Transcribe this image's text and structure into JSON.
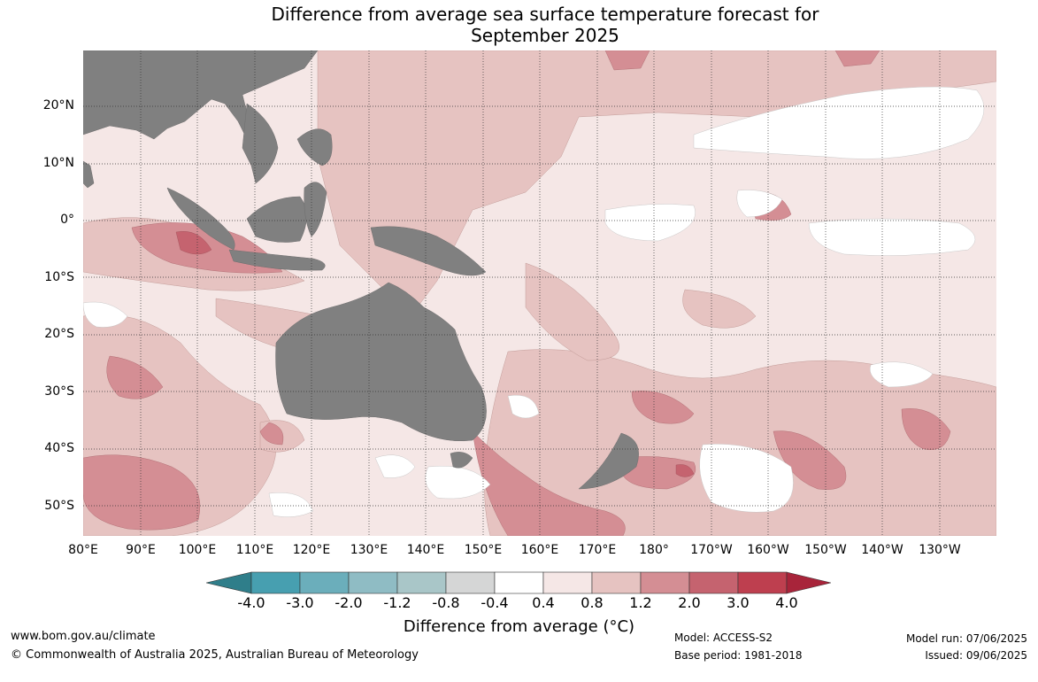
{
  "title_line1": "Difference from average sea surface temperature forecast for",
  "title_line2": "September 2025",
  "lat_labels": [
    "20°N",
    "10°N",
    "0°",
    "10°S",
    "20°S",
    "30°S",
    "40°S",
    "50°S"
  ],
  "lon_labels": [
    "80°E",
    "90°E",
    "100°E",
    "110°E",
    "120°E",
    "130°E",
    "140°E",
    "150°E",
    "160°E",
    "170°E",
    "180°",
    "170°W",
    "160°W",
    "150°W",
    "140°W",
    "130°W"
  ],
  "colorbar": {
    "ticks": [
      "-4.0",
      "-3.0",
      "-2.0",
      "-1.2",
      "-0.8",
      "-0.4",
      "0.4",
      "0.8",
      "1.2",
      "2.0",
      "3.0",
      "4.0"
    ],
    "colors": [
      "#2f7e8a",
      "#479fb0",
      "#6baebb",
      "#8fbcc4",
      "#a9c6c8",
      "#d5d6d6",
      "#ffffff",
      "#f5e7e6",
      "#e6c3c1",
      "#d48e94",
      "#c5636f",
      "#be3f4f",
      "#a8243a"
    ],
    "label": "Difference from average (°C)"
  },
  "footer": {
    "url": "www.bom.gov.au/climate",
    "copyright": "© Commonwealth of Australia 2025, Australian Bureau of Meteorology",
    "model": "Model: ACCESS-S2",
    "base_period": "Base period: 1981-2018",
    "model_run": "Model run: 07/06/2025",
    "issued": "Issued: 09/06/2025"
  }
}
